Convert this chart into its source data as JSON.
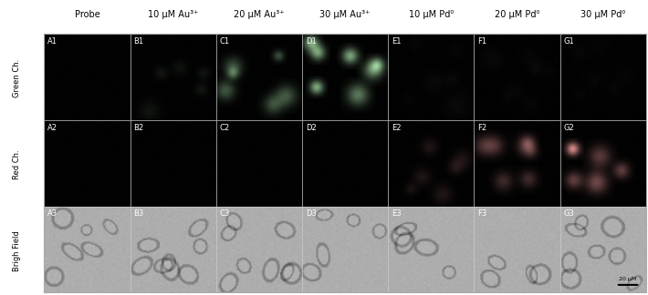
{
  "col_headers": [
    "Probe",
    "10 μM Au³⁺",
    "20 μM Au³⁺",
    "30 μM Au³⁺",
    "10 μM Pd⁰",
    "20 μM Pd⁰",
    "30 μM Pd⁰"
  ],
  "row_labels": [
    "Green Ch.",
    "Red Ch.",
    "Brigh Field"
  ],
  "cell_labels": [
    [
      "A1",
      "B1",
      "C1",
      "D1",
      "E1",
      "F1",
      "G1"
    ],
    [
      "A2",
      "B2",
      "C2",
      "D2",
      "E2",
      "F2",
      "G2"
    ],
    [
      "A3",
      "B3",
      "C3",
      "D3",
      "E3",
      "F3",
      "G3"
    ]
  ],
  "scalebar_text": "20 μM",
  "header_fontsize": 7.0,
  "label_fontsize": 6.0,
  "cell_label_fontsize": 6.0,
  "figure_bg": "#ffffff",
  "green_spots": {
    "A1": 0.0,
    "B1": 0.08,
    "C1": 0.35,
    "D1": 0.65,
    "E1": 0.02,
    "F1": 0.02,
    "G1": 0.02
  },
  "red_spots": {
    "A2": 0.0,
    "B2": 0.0,
    "C2": 0.0,
    "D2": 0.0,
    "E2": 0.12,
    "F2": 0.3,
    "G2": 0.45
  },
  "brightfield_gray": 0.68,
  "brightfield_noise": 0.04
}
